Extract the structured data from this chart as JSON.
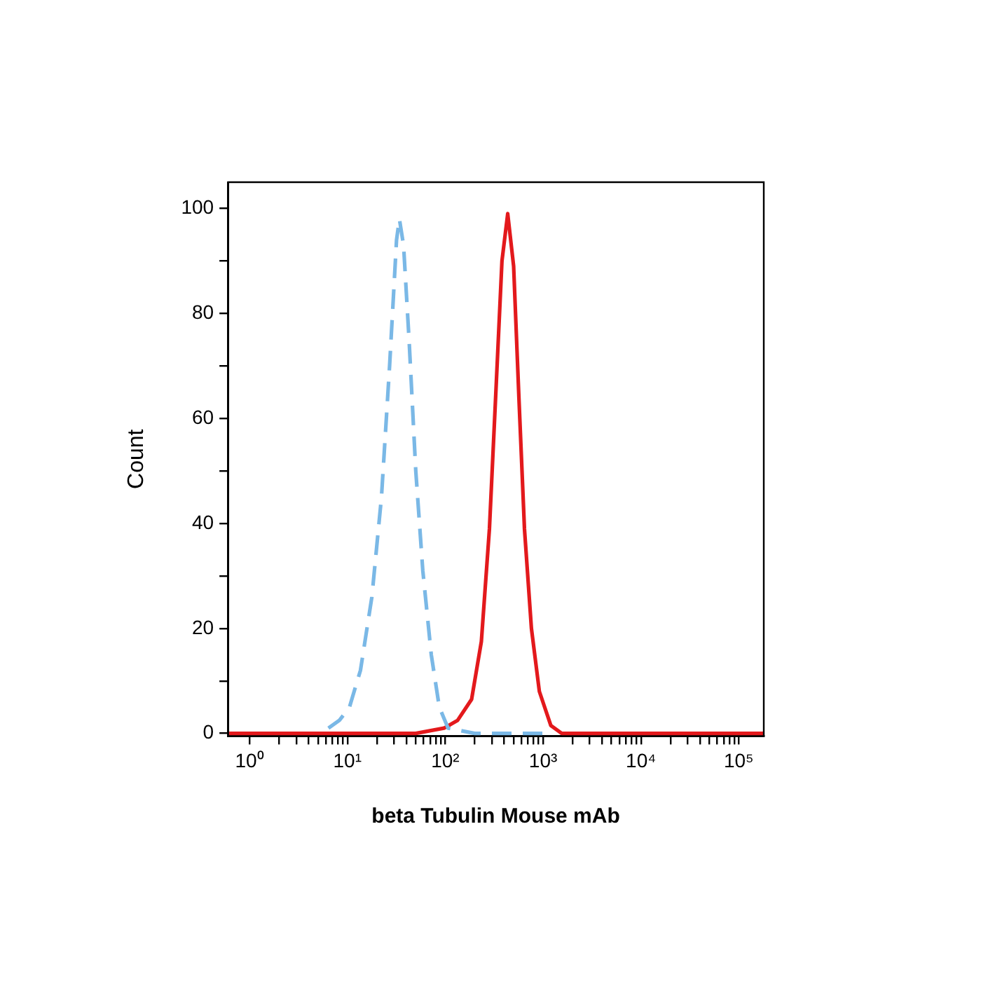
{
  "chart_data": {
    "type": "line",
    "xlabel": "beta Tubulin Mouse mAb",
    "ylabel": "Count",
    "log": "x",
    "grid": false,
    "marker": "none",
    "xlim": [
      0.62,
      180000
    ],
    "ylim": [
      -0.5,
      105
    ],
    "xticks": [
      {
        "value": 1,
        "label": "10⁰"
      },
      {
        "value": 2,
        "label": null
      },
      {
        "value": 3,
        "label": null
      },
      {
        "value": 4,
        "label": null
      },
      {
        "value": 5,
        "label": null
      },
      {
        "value": 6,
        "label": null
      },
      {
        "value": 7,
        "label": null
      },
      {
        "value": 8,
        "label": null
      },
      {
        "value": 9,
        "label": null
      },
      {
        "value": 10,
        "label": "10¹"
      },
      {
        "value": 20,
        "label": null
      },
      {
        "value": 30,
        "label": null
      },
      {
        "value": 40,
        "label": null
      },
      {
        "value": 50,
        "label": null
      },
      {
        "value": 60,
        "label": null
      },
      {
        "value": 70,
        "label": null
      },
      {
        "value": 80,
        "label": null
      },
      {
        "value": 90,
        "label": null
      },
      {
        "value": 100,
        "label": "10²"
      },
      {
        "value": 200,
        "label": null
      },
      {
        "value": 300,
        "label": null
      },
      {
        "value": 400,
        "label": null
      },
      {
        "value": 500,
        "label": null
      },
      {
        "value": 600,
        "label": null
      },
      {
        "value": 700,
        "label": null
      },
      {
        "value": 800,
        "label": null
      },
      {
        "value": 900,
        "label": null
      },
      {
        "value": 1000,
        "label": "10³"
      },
      {
        "value": 2000,
        "label": null
      },
      {
        "value": 3000,
        "label": null
      },
      {
        "value": 4000,
        "label": null
      },
      {
        "value": 5000,
        "label": null
      },
      {
        "value": 6000,
        "label": null
      },
      {
        "value": 7000,
        "label": null
      },
      {
        "value": 8000,
        "label": null
      },
      {
        "value": 9000,
        "label": null
      },
      {
        "value": 10000,
        "label": "10⁴"
      },
      {
        "value": 20000,
        "label": null
      },
      {
        "value": 30000,
        "label": null
      },
      {
        "value": 40000,
        "label": null
      },
      {
        "value": 50000,
        "label": null
      },
      {
        "value": 60000,
        "label": null
      },
      {
        "value": 70000,
        "label": null
      },
      {
        "value": 80000,
        "label": null
      },
      {
        "value": 90000,
        "label": null
      },
      {
        "value": 100000,
        "label": "10⁵"
      }
    ],
    "yticks": [
      0,
      {
        "value": 10,
        "label": null
      },
      20,
      {
        "value": 30,
        "label": null
      },
      40,
      {
        "value": 50,
        "label": null
      },
      60,
      {
        "value": 70,
        "label": null
      },
      80,
      {
        "value": 90,
        "label": null
      },
      100
    ],
    "series": [
      {
        "color": "#7ab8e6",
        "line_style": "dashed",
        "x": [
          6.4,
          8.3,
          10.5,
          13.6,
          17.8,
          22.3,
          27,
          31.8,
          34,
          37.5,
          42.7,
          50,
          59,
          72,
          87,
          107,
          200,
          1000
        ],
        "values": [
          1,
          2.5,
          5,
          12,
          26,
          45,
          70,
          94,
          98,
          93,
          75,
          50,
          31,
          15,
          5,
          1,
          0,
          0
        ]
      },
      {
        "color": "#e3191c",
        "line_style": "solid",
        "x": [
          0.62,
          50,
          97,
          134,
          186,
          234,
          283,
          333,
          380,
          435,
          500,
          566,
          645,
          760,
          916,
          1200,
          1550,
          180000
        ],
        "values": [
          0,
          0,
          1,
          2.5,
          6.5,
          17.5,
          39,
          67,
          90,
          99,
          89,
          64,
          39,
          20,
          8,
          1.5,
          0,
          0
        ]
      }
    ]
  }
}
